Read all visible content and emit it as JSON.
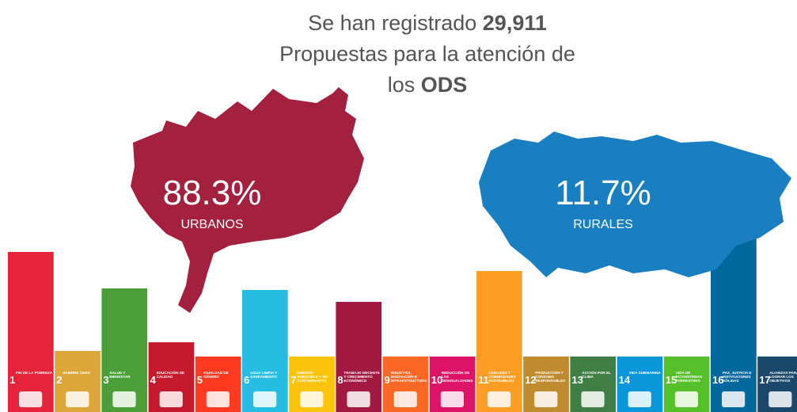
{
  "chart_data": {
    "type": "bar",
    "title": [
      "Se han registrado",
      "29,911",
      "Propuestas para la atención de",
      "los",
      "ODS"
    ],
    "urban": {
      "value_label": "88.3%",
      "label": "URBANOS"
    },
    "rural": {
      "value_label": "11.7%",
      "label": "RURALES"
    },
    "goal_numbers": [
      1,
      2,
      3,
      4,
      5,
      6,
      7,
      8,
      9,
      10,
      11,
      12,
      13,
      14,
      15,
      16,
      17
    ],
    "categories": [
      "FIN DE LA POBREZA",
      "HAMBRE CERO",
      "SALUD Y BIENESTAR",
      "EDUCACIÓN DE CALIDAD",
      "IGUALDAD DE GÉNERO",
      "AGUA LIMPIA Y SANEAMIENTO",
      "ENERGÍA ASEQUIBLE Y NO CONTAMINANTE",
      "TRABAJO DECENTE Y CRECIMIENTO ECONÓMICO",
      "INDUSTRIA, INNOVACIÓN E INFRAESTRUCTURA",
      "REDUCCIÓN DE LAS DESIGUALDADES",
      "CIUDADES Y COMUNIDADES SOSTENIBLES",
      "PRODUCCIÓN Y CONSUMO RESPONSABLES",
      "ACCIÓN POR EL CLIMA",
      "VIDA SUBMARINA",
      "VIDA DE ECOSISTEMAS TERRESTRES",
      "PAZ, JUSTICIA E INSTITUCIONES SÓLIDAS",
      "ALIANZAS PARA LOGRAR LOS OBJETIVOS"
    ],
    "values": [
      202,
      77,
      156,
      88,
      70,
      154,
      70,
      139,
      70,
      70,
      178,
      70,
      70,
      70,
      70,
      271,
      70
    ],
    "colors": [
      "#e5243b",
      "#dda63a",
      "#4c9f38",
      "#c5192d",
      "#ff3a21",
      "#26bde2",
      "#fcc30b",
      "#a21942",
      "#fd6925",
      "#dd1367",
      "#fd9d24",
      "#bf8b2e",
      "#3f7e44",
      "#0a97d9",
      "#56c02b",
      "#00689d",
      "#19486a"
    ],
    "ylim": [
      0,
      520
    ]
  }
}
